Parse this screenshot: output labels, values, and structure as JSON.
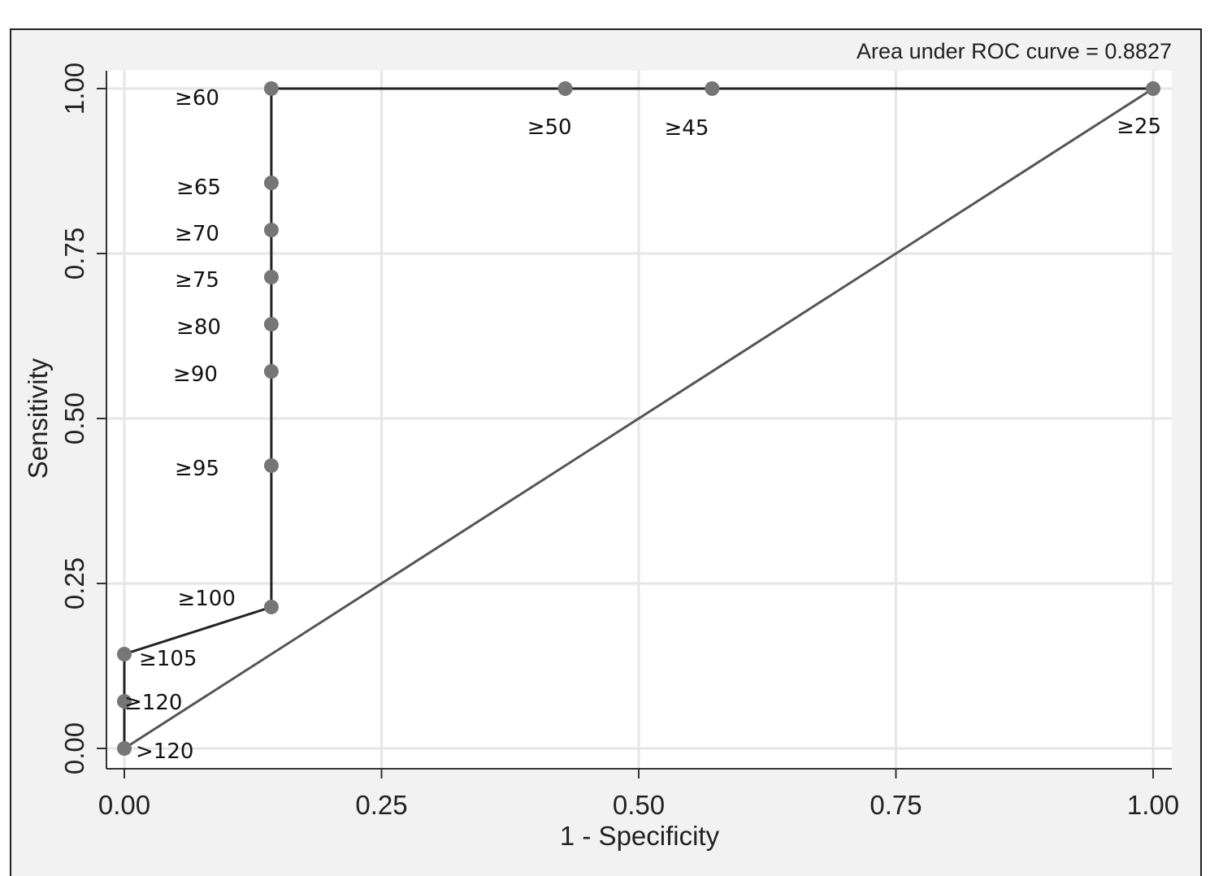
{
  "chart_data": {
    "type": "line",
    "note": "Area under ROC curve = 0.8827",
    "xlabel": "1 - Specificity",
    "ylabel": "Sensitivity",
    "xlim": [
      0,
      1
    ],
    "ylim": [
      0,
      1
    ],
    "x_ticks": [
      "0.00",
      "0.25",
      "0.50",
      "0.75",
      "1.00"
    ],
    "y_ticks": [
      "0.00",
      "0.25",
      "0.50",
      "0.75",
      "1.00"
    ],
    "grid": true,
    "reference_line": [
      [
        0,
        0
      ],
      [
        1,
        1
      ]
    ],
    "points": [
      {
        "x": 0.0,
        "y": 0.0,
        "label": ">120"
      },
      {
        "x": 0.0,
        "y": 0.0714,
        "label": "≥120"
      },
      {
        "x": 0.0,
        "y": 0.1429,
        "label": "≥105"
      },
      {
        "x": 0.1429,
        "y": 0.2143,
        "label": "≥100"
      },
      {
        "x": 0.1429,
        "y": 0.4286,
        "label": "≥95"
      },
      {
        "x": 0.1429,
        "y": 0.5714,
        "label": "≥90"
      },
      {
        "x": 0.1429,
        "y": 0.6429,
        "label": "≥80"
      },
      {
        "x": 0.1429,
        "y": 0.7143,
        "label": "≥75"
      },
      {
        "x": 0.1429,
        "y": 0.7857,
        "label": "≥70"
      },
      {
        "x": 0.1429,
        "y": 0.8571,
        "label": "≥65"
      },
      {
        "x": 0.1429,
        "y": 1.0,
        "label": "≥60"
      },
      {
        "x": 0.4286,
        "y": 1.0,
        "label": "≥50"
      },
      {
        "x": 0.5714,
        "y": 1.0,
        "label": "≥45"
      },
      {
        "x": 1.0,
        "y": 1.0,
        "label": "≥25"
      }
    ]
  }
}
